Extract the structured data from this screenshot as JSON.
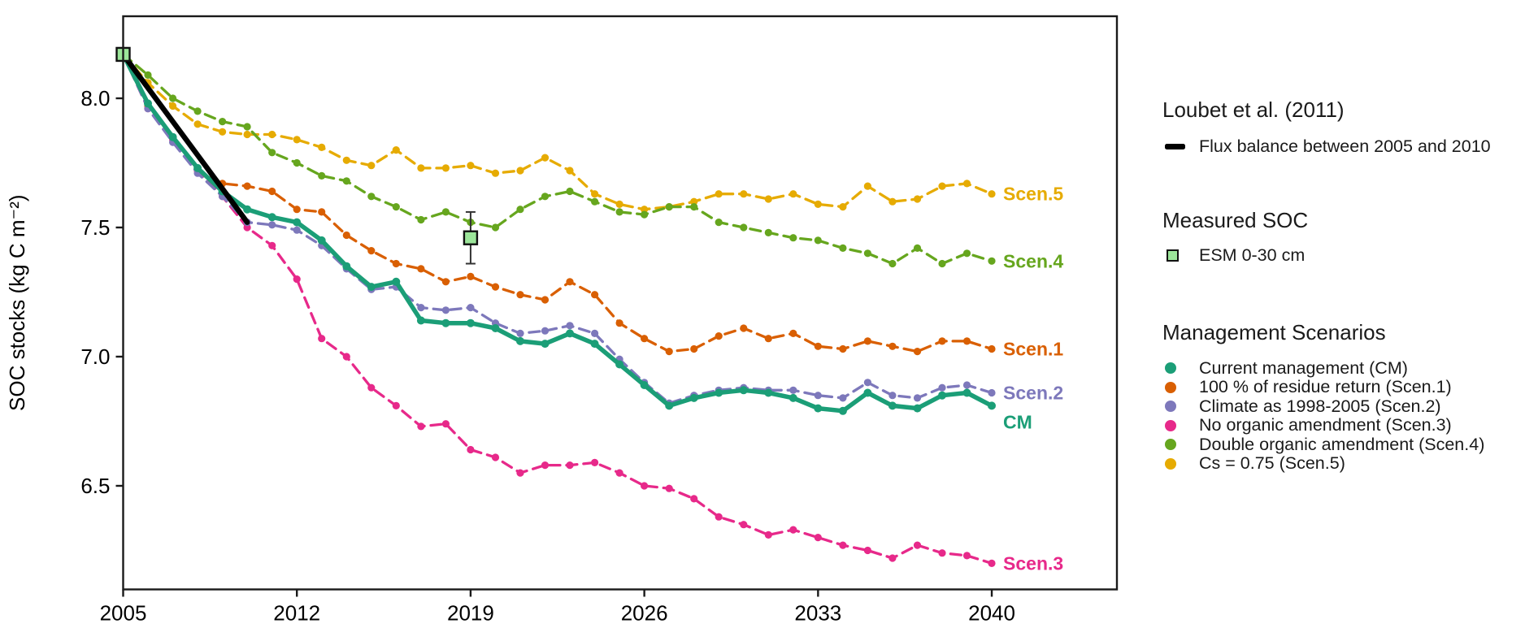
{
  "chart_data": {
    "type": "line",
    "title": "",
    "xlabel": "",
    "ylabel": "SOC stocks (kg C m⁻²)",
    "x_ticks": [
      2005,
      2012,
      2019,
      2026,
      2033,
      2040
    ],
    "y_ticks": [
      8.0,
      7.5,
      7.0,
      6.5
    ],
    "xlim": [
      2005,
      2045
    ],
    "ylim": [
      6.1,
      8.32
    ],
    "grid": false,
    "years": [
      2005,
      2006,
      2007,
      2008,
      2009,
      2010,
      2011,
      2012,
      2013,
      2014,
      2015,
      2016,
      2017,
      2018,
      2019,
      2020,
      2021,
      2022,
      2023,
      2024,
      2025,
      2026,
      2027,
      2028,
      2029,
      2030,
      2031,
      2032,
      2033,
      2034,
      2035,
      2036,
      2037,
      2038,
      2039,
      2040
    ],
    "series": [
      {
        "name": "CM",
        "annotation": "CM",
        "legend": "Current management (CM)",
        "color": "#1b9e77",
        "style": "solid",
        "values": [
          8.17,
          7.98,
          7.85,
          7.73,
          7.64,
          7.57,
          7.54,
          7.52,
          7.45,
          7.35,
          7.27,
          7.29,
          7.14,
          7.13,
          7.13,
          7.11,
          7.06,
          7.05,
          7.09,
          7.05,
          6.97,
          6.89,
          6.81,
          6.84,
          6.86,
          6.87,
          6.86,
          6.84,
          6.8,
          6.79,
          6.86,
          6.81,
          6.8,
          6.85,
          6.86,
          6.81
        ]
      },
      {
        "name": "Scen.1",
        "annotation": "Scen.1",
        "legend": "100 % of residue return (Scen.1)",
        "color": "#d95f02",
        "style": "dashed",
        "values": [
          8.17,
          7.97,
          7.85,
          7.72,
          7.67,
          7.66,
          7.64,
          7.57,
          7.56,
          7.47,
          7.41,
          7.36,
          7.34,
          7.29,
          7.31,
          7.27,
          7.24,
          7.22,
          7.29,
          7.24,
          7.13,
          7.07,
          7.02,
          7.03,
          7.08,
          7.11,
          7.07,
          7.09,
          7.04,
          7.03,
          7.06,
          7.04,
          7.02,
          7.06,
          7.06,
          7.03
        ]
      },
      {
        "name": "Scen.2",
        "annotation": "Scen.2",
        "legend": "Climate as 1998-2005 (Scen.2)",
        "color": "#7d78bb",
        "style": "dashed",
        "values": [
          8.17,
          7.96,
          7.83,
          7.71,
          7.62,
          7.52,
          7.51,
          7.49,
          7.43,
          7.34,
          7.26,
          7.27,
          7.19,
          7.18,
          7.19,
          7.13,
          7.09,
          7.1,
          7.12,
          7.09,
          6.99,
          6.9,
          6.82,
          6.85,
          6.87,
          6.88,
          6.87,
          6.87,
          6.85,
          6.84,
          6.9,
          6.85,
          6.84,
          6.88,
          6.89,
          6.86
        ]
      },
      {
        "name": "Scen.3",
        "annotation": "Scen.3",
        "legend": "No organic amendment (Scen.3)",
        "color": "#e7298a",
        "style": "dashed",
        "values": [
          8.17,
          7.96,
          7.84,
          7.72,
          7.62,
          7.5,
          7.43,
          7.3,
          7.07,
          7.0,
          6.88,
          6.81,
          6.73,
          6.74,
          6.64,
          6.61,
          6.55,
          6.58,
          6.58,
          6.59,
          6.55,
          6.5,
          6.49,
          6.45,
          6.38,
          6.35,
          6.31,
          6.33,
          6.3,
          6.27,
          6.25,
          6.22,
          6.27,
          6.24,
          6.23,
          6.2
        ]
      },
      {
        "name": "Scen.4",
        "annotation": "Scen.4",
        "legend": "Double organic amendment (Scen.4)",
        "color": "#66a61e",
        "style": "dashed",
        "values": [
          8.17,
          8.09,
          8.0,
          7.95,
          7.91,
          7.89,
          7.79,
          7.75,
          7.7,
          7.68,
          7.62,
          7.58,
          7.53,
          7.56,
          7.52,
          7.5,
          7.57,
          7.62,
          7.64,
          7.6,
          7.56,
          7.55,
          7.58,
          7.58,
          7.52,
          7.5,
          7.48,
          7.46,
          7.45,
          7.42,
          7.4,
          7.36,
          7.42,
          7.36,
          7.4,
          7.37
        ]
      },
      {
        "name": "Scen.5",
        "annotation": "Scen.5",
        "legend": "Cs = 0.75 (Scen.5)",
        "color": "#e6ab02",
        "style": "dashed",
        "values": [
          8.17,
          8.06,
          7.97,
          7.9,
          7.87,
          7.86,
          7.86,
          7.84,
          7.81,
          7.76,
          7.74,
          7.8,
          7.73,
          7.73,
          7.74,
          7.71,
          7.72,
          7.77,
          7.72,
          7.63,
          7.59,
          7.57,
          7.58,
          7.6,
          7.63,
          7.63,
          7.61,
          7.63,
          7.59,
          7.58,
          7.66,
          7.6,
          7.61,
          7.66,
          7.67,
          7.63
        ]
      }
    ],
    "flux_line": {
      "label": "Flux balance between 2005 and 2010",
      "color": "#000000",
      "x": [
        2005,
        2010
      ],
      "y": [
        8.17,
        7.52
      ]
    },
    "measured_points": {
      "label": "ESM 0-30 cm",
      "fill": "#9ce69a",
      "stroke": "#111111",
      "points": [
        {
          "year": 2005,
          "value": 8.17,
          "error": 0.02
        },
        {
          "year": 2019,
          "value": 7.46,
          "error": 0.1
        }
      ]
    }
  },
  "legend": {
    "sections": [
      {
        "title": "Loubet et al. (2011)",
        "items": [
          {
            "label": "Flux balance between 2005 and 2010",
            "marker": "dash",
            "color": "#000000"
          }
        ]
      },
      {
        "title": "Measured SOC",
        "items": [
          {
            "label": "ESM 0-30 cm",
            "marker": "square",
            "color": "#9ce69a"
          }
        ]
      },
      {
        "title": "Management Scenarios",
        "items": [
          {
            "label": "Current management (CM)",
            "marker": "circle",
            "color": "#1b9e77"
          },
          {
            "label": "100 % of residue return (Scen.1)",
            "marker": "circle",
            "color": "#d95f02"
          },
          {
            "label": "Climate as 1998-2005 (Scen.2)",
            "marker": "circle",
            "color": "#7d78bb"
          },
          {
            "label": "No organic amendment (Scen.3)",
            "marker": "circle",
            "color": "#e7298a"
          },
          {
            "label": "Double organic amendment (Scen.4)",
            "marker": "circle",
            "color": "#66a61e"
          },
          {
            "label": "Cs = 0.75 (Scen.5)",
            "marker": "circle",
            "color": "#e6ab02"
          }
        ]
      }
    ]
  }
}
